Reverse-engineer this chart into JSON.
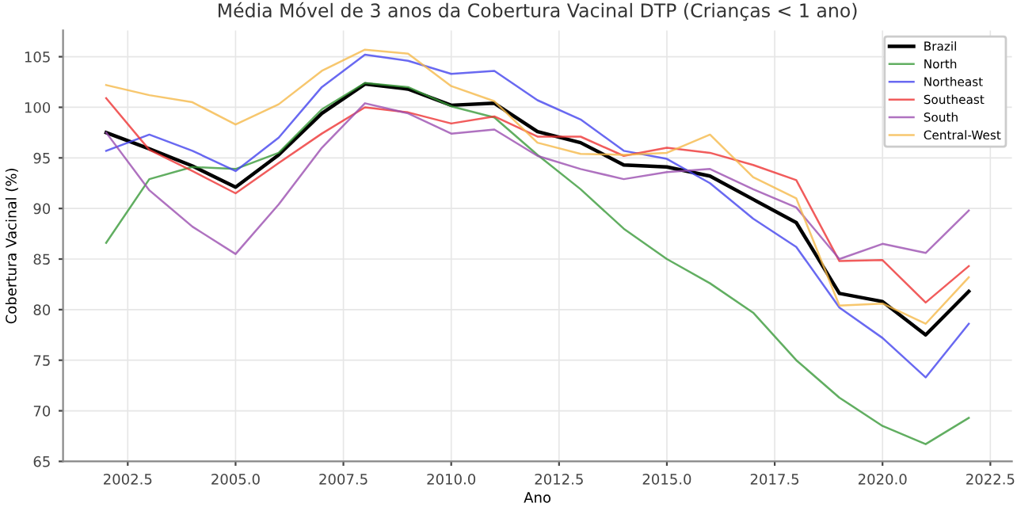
{
  "chart_data": {
    "type": "line",
    "title": "Média Móvel de 3 anos da Cobertura Vacinal DTP (Crianças < 1 ano)",
    "xlabel": "Ano",
    "ylabel": "Cobertura Vacinal (%)",
    "x": [
      2002,
      2003,
      2004,
      2005,
      2006,
      2007,
      2008,
      2009,
      2010,
      2011,
      2012,
      2013,
      2014,
      2015,
      2016,
      2017,
      2018,
      2019,
      2020,
      2021,
      2022
    ],
    "series": [
      {
        "name": "Brazil",
        "color": "#000000",
        "values": [
          97.5,
          95.9,
          94.2,
          92.1,
          95.3,
          99.4,
          102.3,
          101.8,
          100.2,
          100.4,
          97.6,
          96.5,
          94.3,
          94.1,
          93.2,
          90.9,
          88.6,
          81.6,
          80.8,
          77.5,
          81.8
        ]
      },
      {
        "name": "North",
        "color": "#3a9a3a",
        "values": [
          86.6,
          92.9,
          94.1,
          93.9,
          95.5,
          99.8,
          102.4,
          102.0,
          100.1,
          99.0,
          95.3,
          91.9,
          88.0,
          85.0,
          82.6,
          79.7,
          75.0,
          71.3,
          68.5,
          66.7,
          69.3
        ]
      },
      {
        "name": "Northeast",
        "color": "#4444ee",
        "values": [
          95.7,
          97.3,
          95.7,
          93.7,
          97.0,
          102.0,
          105.2,
          104.6,
          103.3,
          103.6,
          100.7,
          98.8,
          95.7,
          94.9,
          92.5,
          89.0,
          86.2,
          80.2,
          77.2,
          73.3,
          78.6
        ]
      },
      {
        "name": "Southeast",
        "color": "#ee3333",
        "values": [
          100.9,
          95.8,
          93.7,
          91.5,
          94.5,
          97.4,
          100.0,
          99.5,
          98.4,
          99.1,
          97.1,
          97.1,
          95.2,
          96.0,
          95.5,
          94.3,
          92.8,
          84.8,
          84.9,
          80.7,
          84.3
        ]
      },
      {
        "name": "South",
        "color": "#9b4fb0",
        "values": [
          97.5,
          91.8,
          88.2,
          85.5,
          90.4,
          96.0,
          100.4,
          99.4,
          97.4,
          97.8,
          95.2,
          93.9,
          92.9,
          93.6,
          93.9,
          91.9,
          90.1,
          85.0,
          86.5,
          85.6,
          89.8
        ]
      },
      {
        "name": "Central-West",
        "color": "#f5b94a",
        "values": [
          102.2,
          101.2,
          100.5,
          98.3,
          100.3,
          103.6,
          105.7,
          105.3,
          102.1,
          100.6,
          96.5,
          95.4,
          95.3,
          95.5,
          97.3,
          93.1,
          91.0,
          80.4,
          80.6,
          78.6,
          83.2
        ]
      }
    ],
    "xlim": [
      2001.0,
      2023.0
    ],
    "ylim": [
      65,
      107.6
    ],
    "xticks": [
      {
        "value": 2002.5,
        "label": "2002.5"
      },
      {
        "value": 2005,
        "label": "2005.0"
      },
      {
        "value": 2007.5,
        "label": "2007.5"
      },
      {
        "value": 2010,
        "label": "2010.0"
      },
      {
        "value": 2012.5,
        "label": "2012.5"
      },
      {
        "value": 2015,
        "label": "2015.0"
      },
      {
        "value": 2017.5,
        "label": "2017.5"
      },
      {
        "value": 2020,
        "label": "2020.0"
      },
      {
        "value": 2022.5,
        "label": "2022.5"
      }
    ],
    "yticks": [
      65,
      70,
      75,
      80,
      85,
      90,
      95,
      100,
      105
    ],
    "grid": true,
    "legend": "top right",
    "marker": "none",
    "line_style": "solid"
  }
}
